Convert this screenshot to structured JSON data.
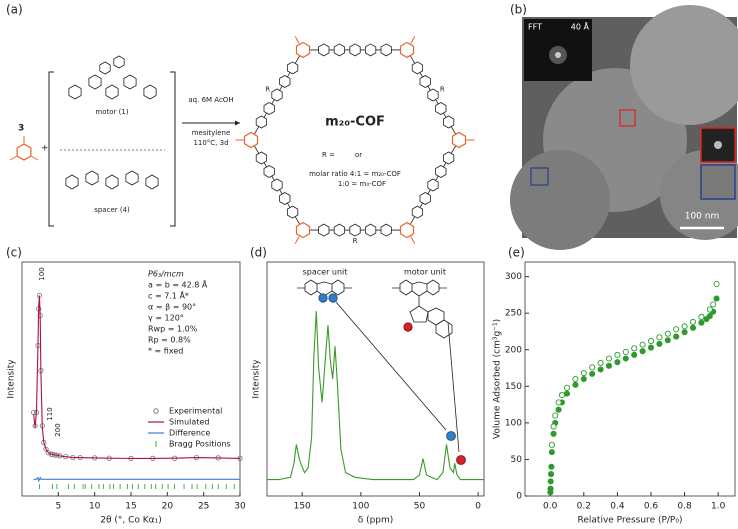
{
  "panel_labels": [
    "(a)",
    "(b)",
    "(c)",
    "(d)",
    "(e)"
  ],
  "scheme": {
    "aldehyde_label": "3",
    "plus": "+",
    "motor_label": "motor (1)",
    "spacer_label": "spacer (4)",
    "conditions": [
      "aq. 6M AcOH",
      "mesitylene",
      "110°C, 3d"
    ],
    "product": "m₂₀-COF",
    "r_label": "R",
    "r_eq": "R =",
    "or": "or",
    "ratio": [
      "molar ratio 4:1 = m₂₀-COF",
      "1:0 = m₀-COF"
    ]
  },
  "tem": {
    "fft": "FFT",
    "fft_scale": "40 Å",
    "scale_bar": "100 nm"
  },
  "chart_data": [
    {
      "type": "line",
      "xlabel": "2θ (°, Co Kα₁)",
      "ylabel": "Intensity",
      "xlim": [
        0,
        30
      ],
      "xticks": [
        5,
        10,
        15,
        20,
        25,
        30
      ],
      "ylim": [
        -20,
        120
      ],
      "x": [
        1.6,
        1.8,
        2.0,
        2.2,
        2.3,
        2.4,
        2.5,
        2.6,
        2.8,
        3.0,
        3.3,
        3.6,
        4.0,
        4.2,
        4.5,
        4.8,
        5.2,
        6,
        7,
        8,
        10,
        12,
        15,
        18,
        21,
        24,
        27,
        30
      ],
      "series": [
        {
          "name": "Experimental",
          "color": "#777777",
          "marker": "open-circle",
          "values": [
            30,
            22,
            30,
            70,
            92,
            100,
            88,
            55,
            22,
            12,
            8,
            6,
            5,
            5,
            4.5,
            4.5,
            4,
            3.5,
            3,
            3,
            2.8,
            2.6,
            2.5,
            2.5,
            2.6,
            3,
            2.8,
            2.5
          ]
        },
        {
          "name": "Simulated",
          "color": "#b0103a",
          "values": [
            29,
            21,
            31,
            71,
            93,
            100,
            87,
            54,
            21,
            12,
            8,
            6,
            5,
            5.2,
            4.5,
            4.6,
            4,
            3.5,
            3,
            3,
            2.8,
            2.6,
            2.5,
            2.5,
            2.6,
            3,
            2.8,
            2.5
          ]
        },
        {
          "name": "Difference",
          "color": "#3b7ddd",
          "values": [
            -10,
            -10,
            -10,
            -9,
            -11,
            -10,
            -9,
            -10,
            -10,
            -10,
            -10,
            -10,
            -10,
            -10,
            -10,
            -10,
            -10,
            -10,
            -10,
            -10,
            -10,
            -10,
            -10,
            -10,
            -10,
            -10,
            -10,
            -10
          ]
        }
      ],
      "bragg": {
        "name": "Bragg Positions",
        "color": "#3aa63a",
        "x": [
          2.4,
          4.2,
          4.8,
          6.4,
          7.2,
          8.4,
          8.7,
          9.6,
          10.6,
          11.2,
          12.1,
          12.6,
          13.5,
          14.5,
          15.2,
          16.0,
          16.9,
          17.8,
          18.4,
          19.3,
          20.1,
          21.0,
          22.3,
          23.4,
          24.1,
          25.3,
          26.2,
          27.0,
          28.1,
          29.2
        ]
      },
      "peak_labels": [
        "100",
        "110",
        "200"
      ],
      "info": [
        "P6₃/mcm",
        "a = b = 42.8 Å",
        "c = 7.1 Å*",
        "α = β = 90°",
        "γ = 120°",
        "Rwp = 1.0%",
        "Rp = 0.8%",
        "* = fixed"
      ],
      "legend": "center right"
    },
    {
      "type": "line",
      "xlabel": "δ (ppm)",
      "ylabel": "Intensity",
      "xlim": [
        180,
        -5
      ],
      "xticks": [
        150,
        100,
        50,
        0
      ],
      "ylim": [
        0,
        100
      ],
      "x": [
        180,
        170,
        160,
        157,
        155,
        152,
        148,
        145,
        142,
        140,
        138,
        136,
        133,
        130,
        128,
        126,
        124,
        122,
        120,
        117,
        113,
        105,
        90,
        70,
        55,
        50,
        47,
        44,
        40,
        35,
        30,
        27,
        24,
        21,
        20,
        18,
        15,
        10,
        5,
        0,
        -5
      ],
      "series": [
        {
          "color": "#3a9a2a",
          "values": [
            7,
            7,
            8,
            14,
            22,
            15,
            10,
            12,
            25,
            60,
            79,
            55,
            40,
            60,
            73,
            58,
            50,
            64,
            48,
            20,
            10,
            8,
            7,
            7,
            7,
            9,
            16,
            9,
            8,
            7,
            10,
            22,
            12,
            10,
            14,
            9,
            7,
            7,
            7,
            7,
            7
          ]
        }
      ],
      "annotations": [
        "spacer unit",
        "motor unit"
      ]
    },
    {
      "type": "scatter",
      "xlabel": "Relative Pressure (P/P₀)",
      "ylabel": "Volume Adsorbed (cm³g⁻¹)",
      "xlim": [
        -0.15,
        1.1
      ],
      "xticks": [
        {
          "value": 0,
          "label": "0.0"
        },
        {
          "value": 0.2,
          "label": "0.2"
        },
        {
          "value": 0.4,
          "label": "0.4"
        },
        {
          "value": 0.6,
          "label": "0.6"
        },
        {
          "value": 0.8,
          "label": "0.8"
        },
        {
          "value": 1,
          "label": "1.0"
        }
      ],
      "ylim": [
        0,
        320
      ],
      "yticks": [
        0,
        50,
        100,
        150,
        200,
        250,
        300
      ],
      "series": [
        {
          "color": "#2e9a2e",
          "fill": true,
          "x": [
            0.001,
            0.002,
            0.003,
            0.005,
            0.007,
            0.01,
            0.02,
            0.03,
            0.05,
            0.07,
            0.1,
            0.15,
            0.2,
            0.25,
            0.3,
            0.35,
            0.4,
            0.45,
            0.5,
            0.55,
            0.6,
            0.65,
            0.7,
            0.75,
            0.8,
            0.85,
            0.9,
            0.93,
            0.95,
            0.97,
            0.99
          ],
          "values": [
            5,
            10,
            20,
            30,
            40,
            60,
            85,
            100,
            118,
            128,
            140,
            152,
            160,
            167,
            173,
            178,
            183,
            188,
            193,
            198,
            203,
            208,
            213,
            218,
            224,
            230,
            237,
            242,
            246,
            252,
            270
          ]
        },
        {
          "color": "#2e9a2e",
          "fill": false,
          "x": [
            0.99,
            0.97,
            0.95,
            0.9,
            0.85,
            0.8,
            0.75,
            0.7,
            0.65,
            0.6,
            0.55,
            0.5,
            0.45,
            0.4,
            0.35,
            0.3,
            0.25,
            0.2,
            0.15,
            0.1,
            0.07,
            0.05,
            0.03,
            0.02,
            0.01
          ],
          "values": [
            290,
            262,
            255,
            245,
            238,
            232,
            228,
            222,
            217,
            212,
            207,
            202,
            197,
            193,
            188,
            182,
            176,
            168,
            160,
            148,
            138,
            128,
            110,
            95,
            70
          ]
        }
      ]
    }
  ]
}
